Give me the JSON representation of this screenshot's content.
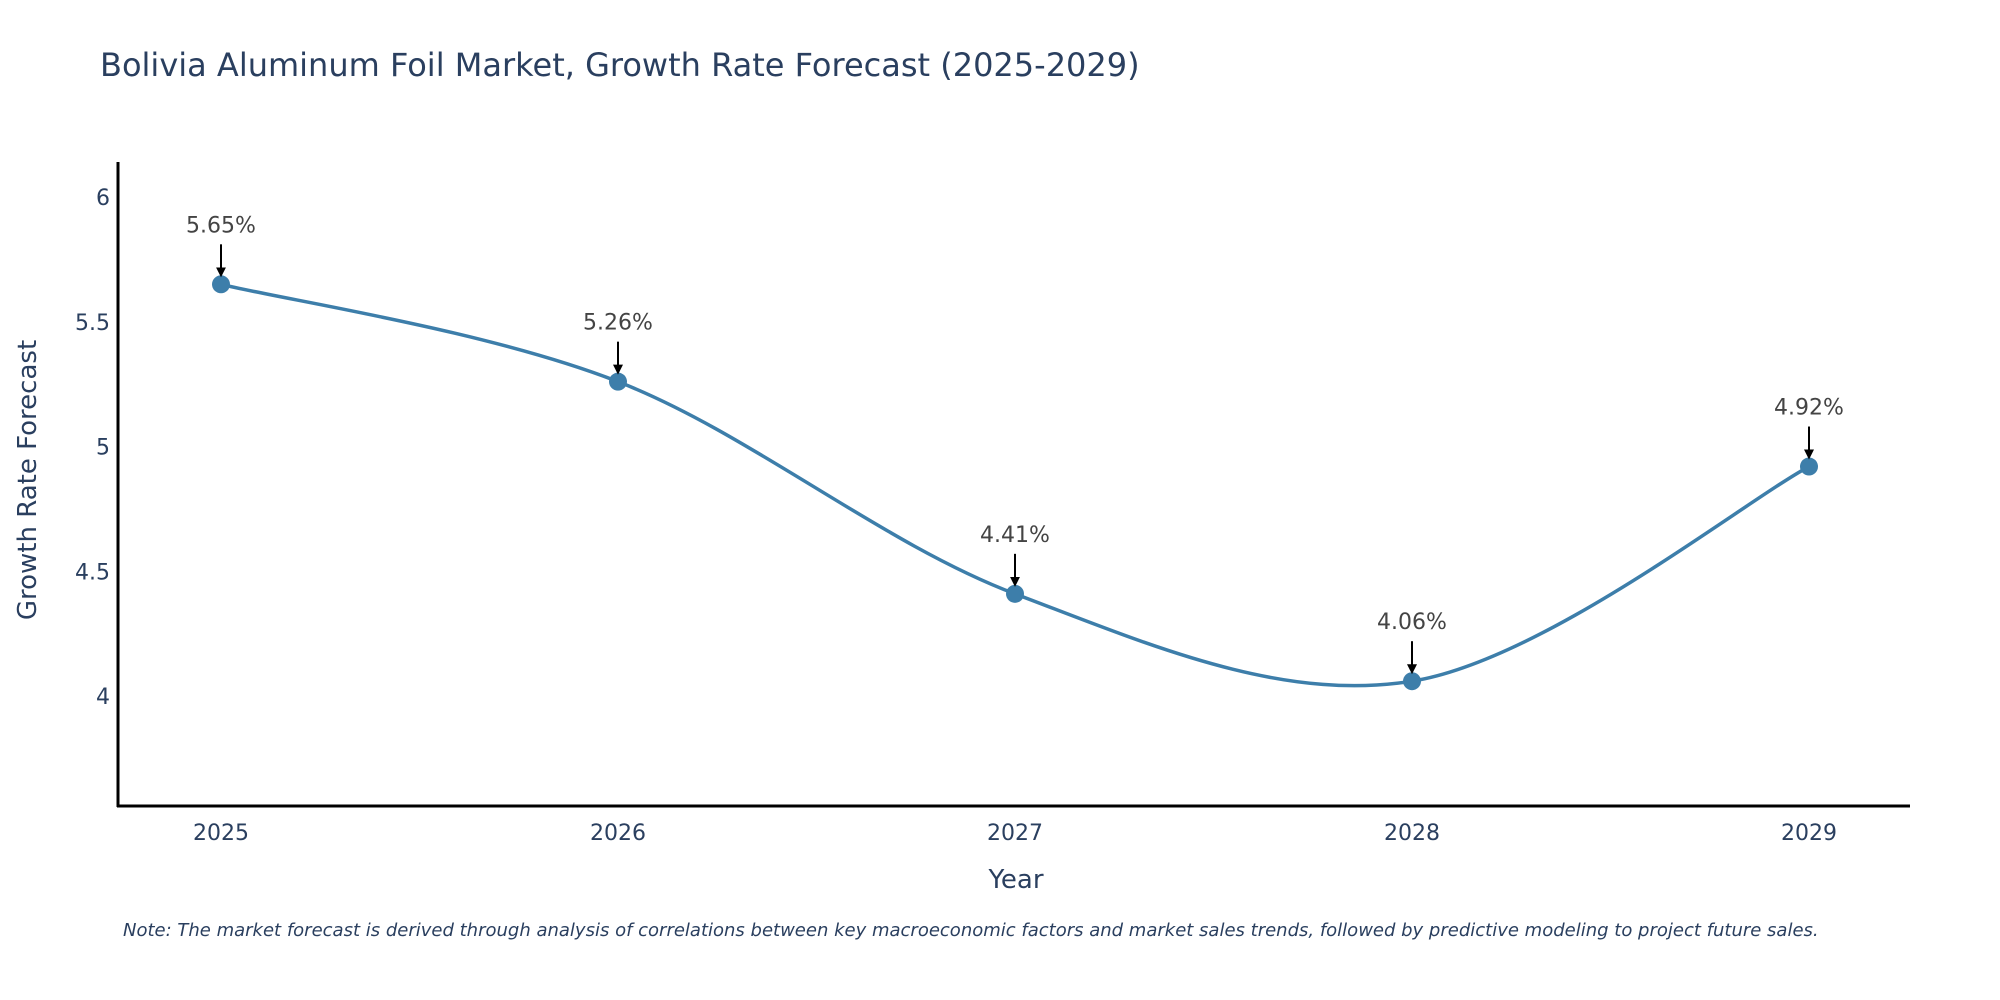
{
  "chart_data": {
    "type": "line",
    "title": "Bolivia Aluminum Foil Market, Growth Rate Forecast (2025-2029)",
    "xlabel": "Year",
    "ylabel": "Growth Rate Forecast",
    "categories": [
      "2025",
      "2026",
      "2027",
      "2028",
      "2029"
    ],
    "values": [
      5.65,
      5.26,
      4.41,
      4.06,
      4.92
    ],
    "data_labels": [
      "5.65%",
      "5.26%",
      "4.41%",
      "4.06%",
      "4.92%"
    ],
    "y_ticks": [
      4,
      4.5,
      5,
      5.5,
      6
    ],
    "y_tick_labels": [
      "4",
      "4.5",
      "5",
      "5.5",
      "6"
    ],
    "ylim": [
      3.56,
      6.14
    ],
    "grid": false,
    "legend": "none",
    "line_shape": "spline",
    "colors": {
      "series": "#3d7eaa",
      "arrow": "#000000",
      "axis": "#000000",
      "text": "#2a3f5f"
    },
    "note": "Note: The market forecast is derived through analysis of correlations between key macroeconomic factors and market sales trends, followed by predictive modeling to project future sales."
  }
}
